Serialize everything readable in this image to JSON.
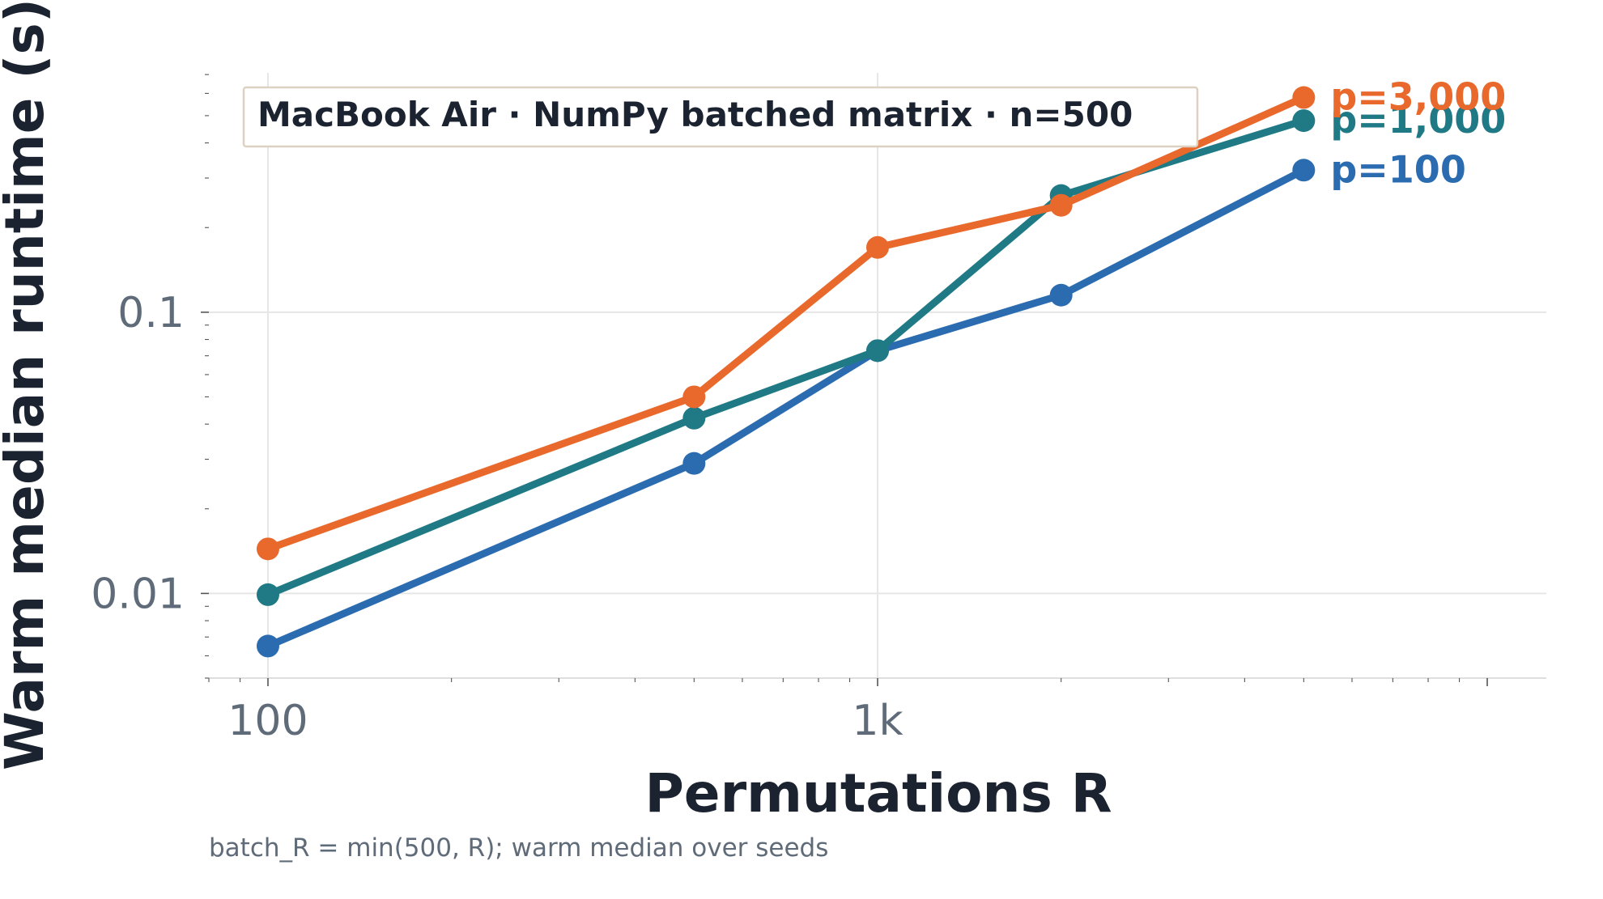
{
  "chart_data": {
    "type": "line",
    "title": "MacBook Air · NumPy batched matrix · n=500",
    "xlabel": "Permutations R",
    "ylabel": "Warm median runtime (s)",
    "xscale": "log",
    "yscale": "log",
    "xlim": [
      80,
      12500
    ],
    "ylim": [
      0.005,
      0.71
    ],
    "x_ticks": [
      {
        "value": 100,
        "label": "100"
      },
      {
        "value": 1000,
        "label": "1k"
      }
    ],
    "y_ticks": [
      {
        "value": 0.01,
        "label": "0.01"
      },
      {
        "value": 0.1,
        "label": "0.1"
      }
    ],
    "grid": true,
    "legend_position": "top-left",
    "x": [
      100,
      500,
      1000,
      2000,
      5000
    ],
    "series": [
      {
        "name": "p=100",
        "color": "#2b6cb0",
        "values": [
          0.0065,
          0.029,
          0.073,
          0.115,
          0.32
        ]
      },
      {
        "name": "p=1,000",
        "color": "#1f7a85",
        "values": [
          0.0099,
          0.042,
          0.073,
          0.26,
          0.48
        ]
      },
      {
        "name": "p=3,000",
        "color": "#e8692b",
        "values": [
          0.0144,
          0.05,
          0.17,
          0.24,
          0.58
        ]
      }
    ]
  },
  "footnote": "batch_R = min(500, R); warm median over seeds"
}
